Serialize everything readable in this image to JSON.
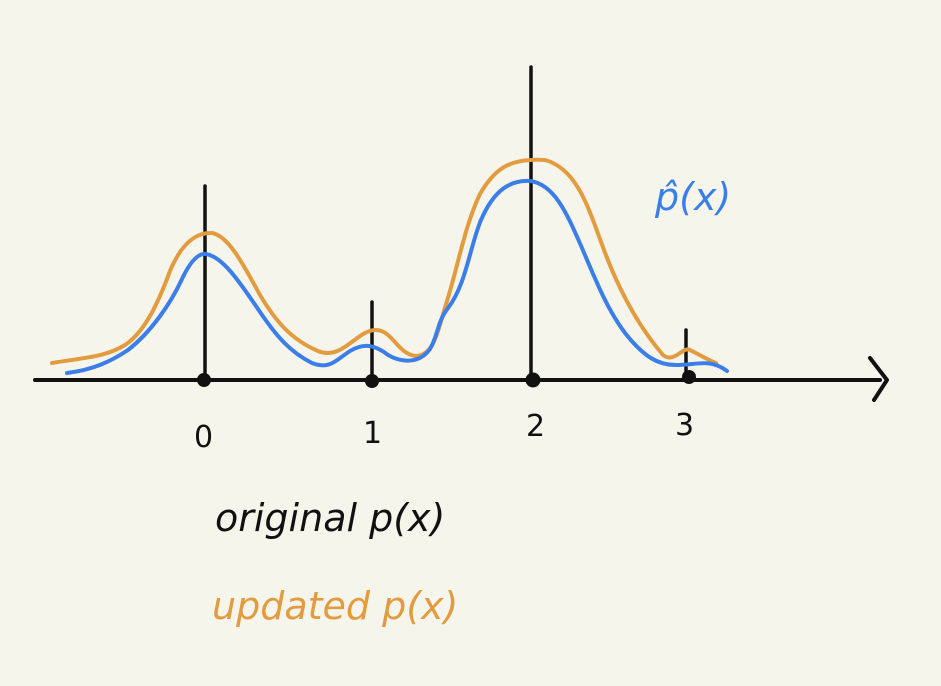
{
  "colors": {
    "background": "#f6f5ec",
    "axis": "#111111",
    "original": "#111111",
    "updated": "#e39b3f",
    "estimate": "#3b7ee8"
  },
  "x_axis": {
    "ticks": [
      "0",
      "1",
      "2",
      "3"
    ]
  },
  "curves": {
    "estimate_label": "p̂(x)"
  },
  "legend": {
    "original": "original p(x)",
    "updated": "updated p(x)"
  },
  "chart_data": {
    "type": "diagram",
    "description_text": [],
    "discrete_original_pmf": {
      "x": [
        0,
        1,
        2,
        3
      ],
      "relative_heights": [
        0.62,
        0.25,
        1.0,
        0.16
      ]
    },
    "curves": [
      {
        "name": "p̂(x)",
        "color": "#3b7ee8"
      },
      {
        "name": "updated p(x)",
        "color": "#e39b3f"
      }
    ]
  }
}
